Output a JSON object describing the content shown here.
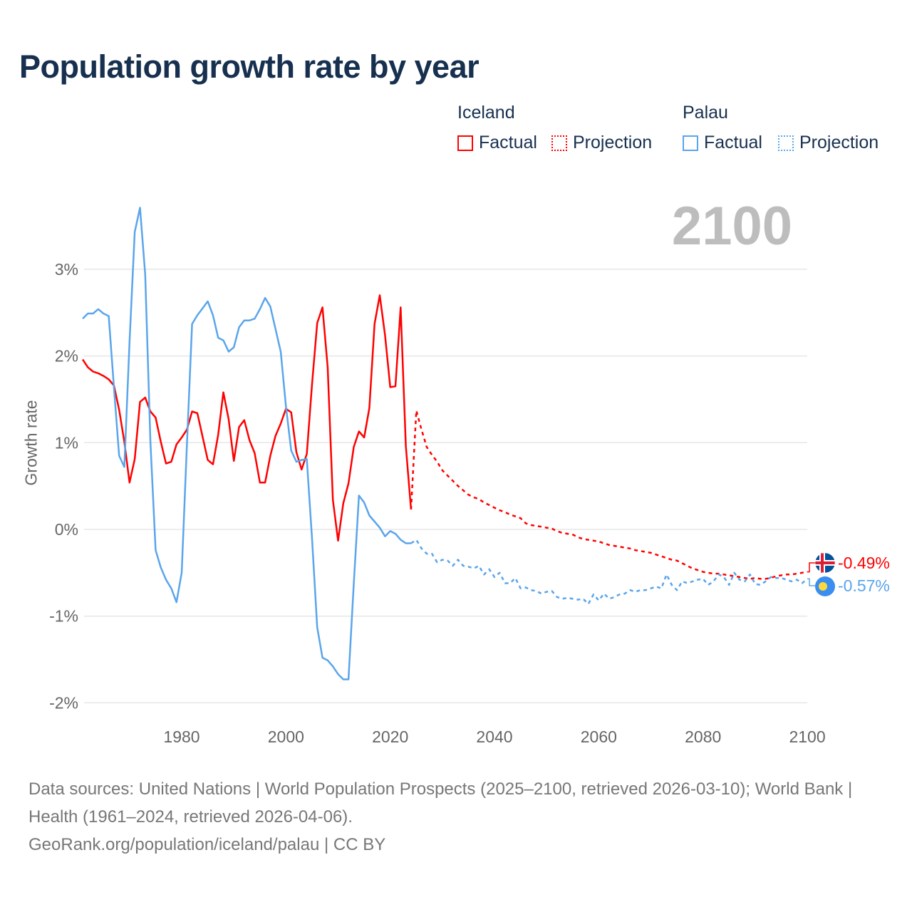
{
  "title": "Population growth rate by year",
  "big_year": "2100",
  "legend": [
    {
      "country": "Iceland",
      "factual": "Factual",
      "projection": "Projection",
      "color": "#ff0000"
    },
    {
      "country": "Palau",
      "factual": "Factual",
      "projection": "Projection",
      "color": "#5aa5eb"
    }
  ],
  "end_labels": {
    "iceland": "-0.49%",
    "palau": "-0.57%"
  },
  "footer": {
    "sources": "Data sources: United Nations | World Population Prospects (2025–2100, retrieved 2026-03-10); World Bank | Health (1961–2024, retrieved 2026-04-06).",
    "credit": "GeoRank.org/population/iceland/palau | CC BY"
  },
  "chart_data": {
    "type": "line",
    "title": "Population growth rate by year",
    "xlabel": "",
    "ylabel": "Growth rate",
    "xlim": [
      1961,
      2100
    ],
    "ylim": [
      -2.2,
      3.8
    ],
    "x_ticks": [
      1980,
      2000,
      2020,
      2040,
      2060,
      2080,
      2100
    ],
    "y_ticks": [
      {
        "v": 3,
        "label": "3%"
      },
      {
        "v": 2,
        "label": "2%"
      },
      {
        "v": 1,
        "label": "1%"
      },
      {
        "v": 0,
        "label": "0%"
      },
      {
        "v": -1,
        "label": "-1%"
      },
      {
        "v": -2,
        "label": "-2%"
      }
    ],
    "grid": true,
    "series": [
      {
        "name": "Iceland Factual",
        "color": "#ff0000",
        "dashed": false,
        "start_year": 1961,
        "values": [
          1.96,
          1.87,
          1.82,
          1.8,
          1.77,
          1.73,
          1.66,
          1.38,
          1.01,
          0.54,
          0.81,
          1.47,
          1.52,
          1.36,
          1.29,
          1.01,
          0.76,
          0.78,
          0.98,
          1.06,
          1.15,
          1.36,
          1.34,
          1.07,
          0.8,
          0.75,
          1.09,
          1.58,
          1.27,
          0.79,
          1.18,
          1.26,
          1.03,
          0.88,
          0.54,
          0.54,
          0.85,
          1.08,
          1.22,
          1.39,
          1.35,
          0.89,
          0.69,
          0.87,
          1.67,
          2.38,
          2.56,
          1.87,
          0.34,
          -0.13,
          0.3,
          0.53,
          0.95,
          1.13,
          1.06,
          1.4,
          2.37,
          2.7,
          2.24,
          1.64,
          1.65,
          2.56,
          0.96,
          0.23
        ]
      },
      {
        "name": "Iceland Projection",
        "color": "#ff0000",
        "dashed": true,
        "start_year": 2024,
        "values": [
          0.23,
          1.37,
          1.15,
          0.95,
          0.86,
          0.78,
          0.68,
          0.62,
          0.56,
          0.5,
          0.45,
          0.4,
          0.37,
          0.35,
          0.31,
          0.28,
          0.25,
          0.22,
          0.2,
          0.17,
          0.15,
          0.13,
          0.07,
          0.05,
          0.04,
          0.03,
          0.02,
          0.01,
          -0.02,
          -0.04,
          -0.05,
          -0.06,
          -0.09,
          -0.11,
          -0.12,
          -0.13,
          -0.14,
          -0.16,
          -0.18,
          -0.19,
          -0.2,
          -0.21,
          -0.22,
          -0.24,
          -0.25,
          -0.26,
          -0.27,
          -0.29,
          -0.31,
          -0.33,
          -0.35,
          -0.36,
          -0.39,
          -0.42,
          -0.45,
          -0.47,
          -0.49,
          -0.5,
          -0.51,
          -0.51,
          -0.52,
          -0.53,
          -0.54,
          -0.55,
          -0.56,
          -0.57,
          -0.56,
          -0.57,
          -0.57,
          -0.56,
          -0.54,
          -0.53,
          -0.52,
          -0.52,
          -0.51,
          -0.5,
          -0.49
        ]
      },
      {
        "name": "Palau Factual",
        "color": "#5aa5eb",
        "dashed": false,
        "start_year": 1961,
        "values": [
          2.43,
          2.49,
          2.49,
          2.54,
          2.49,
          2.46,
          1.64,
          0.85,
          0.72,
          2.16,
          3.43,
          3.71,
          2.94,
          1.01,
          -0.24,
          -0.44,
          -0.58,
          -0.68,
          -0.84,
          -0.5,
          0.97,
          2.37,
          2.47,
          2.55,
          2.63,
          2.47,
          2.21,
          2.18,
          2.05,
          2.1,
          2.33,
          2.41,
          2.41,
          2.43,
          2.54,
          2.67,
          2.57,
          2.31,
          2.05,
          1.42,
          0.91,
          0.78,
          0.8,
          0.81,
          -0.1,
          -1.13,
          -1.48,
          -1.51,
          -1.58,
          -1.67,
          -1.73,
          -1.73,
          -0.63,
          0.39,
          0.31,
          0.16,
          0.09,
          0.02,
          -0.08,
          -0.02,
          -0.05,
          -0.12,
          -0.16,
          -0.16
        ]
      },
      {
        "name": "Palau Projection",
        "color": "#5aa5eb",
        "dashed": true,
        "start_year": 2024,
        "values": [
          -0.16,
          -0.12,
          -0.22,
          -0.28,
          -0.28,
          -0.38,
          -0.35,
          -0.36,
          -0.42,
          -0.35,
          -0.42,
          -0.43,
          -0.45,
          -0.42,
          -0.52,
          -0.46,
          -0.55,
          -0.5,
          -0.62,
          -0.62,
          -0.56,
          -0.68,
          -0.67,
          -0.7,
          -0.71,
          -0.74,
          -0.72,
          -0.71,
          -0.78,
          -0.8,
          -0.79,
          -0.8,
          -0.81,
          -0.8,
          -0.86,
          -0.75,
          -0.82,
          -0.74,
          -0.8,
          -0.78,
          -0.75,
          -0.74,
          -0.7,
          -0.72,
          -0.7,
          -0.7,
          -0.68,
          -0.66,
          -0.68,
          -0.52,
          -0.64,
          -0.7,
          -0.6,
          -0.62,
          -0.6,
          -0.58,
          -0.57,
          -0.64,
          -0.6,
          -0.52,
          -0.55,
          -0.64,
          -0.5,
          -0.58,
          -0.6,
          -0.52,
          -0.63,
          -0.64,
          -0.6,
          -0.55,
          -0.56,
          -0.56,
          -0.58,
          -0.6,
          -0.58,
          -0.62,
          -0.57
        ]
      }
    ]
  }
}
